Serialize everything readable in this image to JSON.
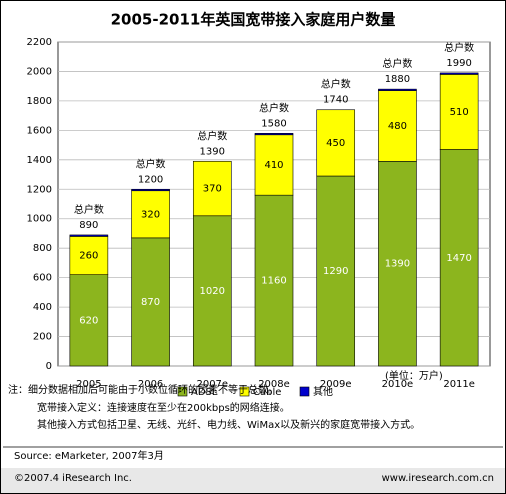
{
  "chart_data": {
    "type": "bar",
    "stacked": true,
    "title": "2005-2011年英国宽带接入家庭用户数量",
    "categories": [
      "2005",
      "2006",
      "2007e",
      "2008e",
      "2009e",
      "2010e",
      "2011e"
    ],
    "series": [
      {
        "name": "ADSL",
        "color": "#8cb51e",
        "values": [
          620,
          870,
          1020,
          1160,
          1290,
          1390,
          1470
        ]
      },
      {
        "name": "Cable",
        "color": "#ffff00",
        "values": [
          260,
          320,
          370,
          410,
          450,
          480,
          510
        ]
      },
      {
        "name": "其他",
        "color": "#0000cc",
        "values": [
          10,
          10,
          0,
          10,
          0,
          10,
          10
        ]
      }
    ],
    "total_label": "总户数",
    "totals": [
      890,
      1200,
      1390,
      1580,
      1740,
      1880,
      1990
    ],
    "ylim": [
      0,
      2200
    ],
    "yticks": [
      0,
      200,
      400,
      600,
      800,
      1000,
      1200,
      1400,
      1600,
      1800,
      2000,
      2200
    ],
    "grid": true,
    "unit": "(单位：万户)",
    "notes": [
      "注：细分数据相加后可能由于小数位循环的因素不等于总数。",
      "宽带接入定义：连接速度在至少在200kbps的网络连接。",
      "其他接入方式包括卫星、无线、光纤、电力线、WiMax以及新兴的家庭宽带接入方式。"
    ],
    "source": "Source: eMarketer, 2007年3月",
    "copyright": "©2007.4 iResearch Inc.",
    "website": "www.iresearch.com.cn"
  }
}
